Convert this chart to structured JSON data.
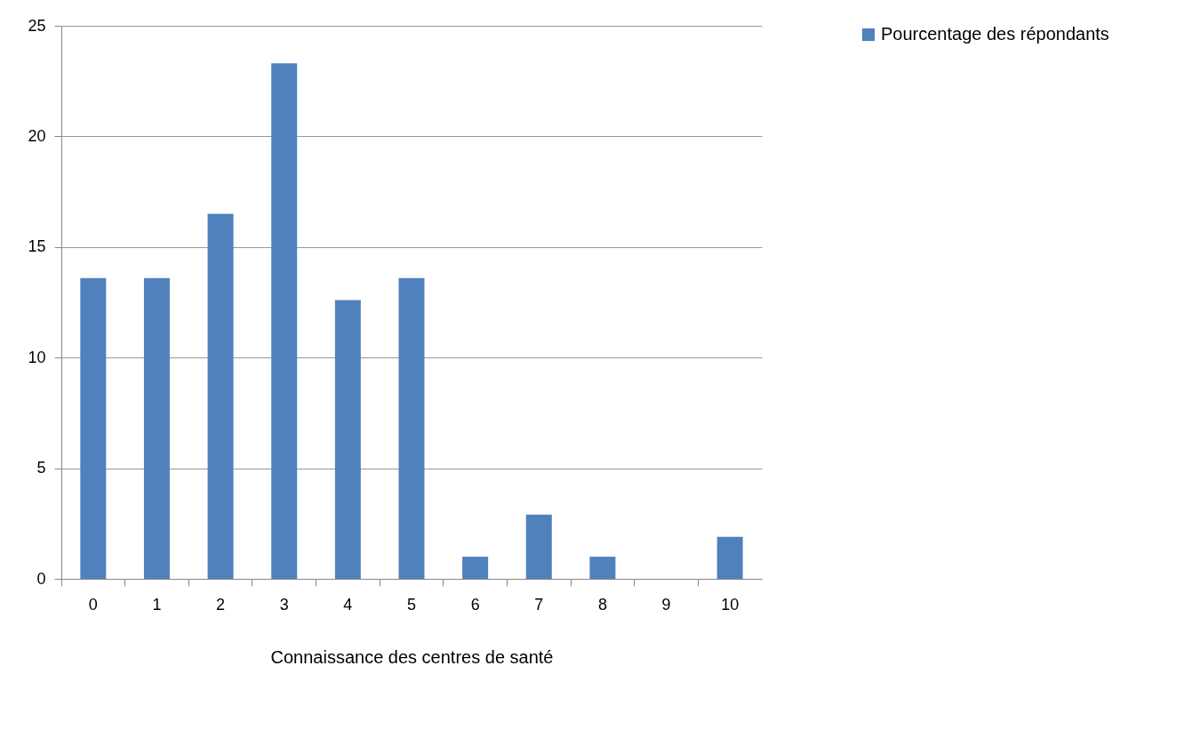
{
  "chart_data": {
    "type": "bar",
    "xlabel": "Connaissance des centres de santé",
    "categories": [
      "0",
      "1",
      "2",
      "3",
      "4",
      "5",
      "6",
      "7",
      "8",
      "9",
      "10"
    ],
    "series": [
      {
        "name": "Pourcentage des répondants",
        "color": "#4f81bd",
        "values": [
          13.6,
          13.6,
          16.5,
          23.3,
          12.6,
          13.6,
          1.0,
          2.9,
          1.0,
          0,
          1.9
        ]
      }
    ],
    "ylim": [
      0,
      25
    ],
    "yticks": [
      0,
      5,
      10,
      15,
      20,
      25
    ],
    "grid": "y",
    "legend": "right"
  }
}
